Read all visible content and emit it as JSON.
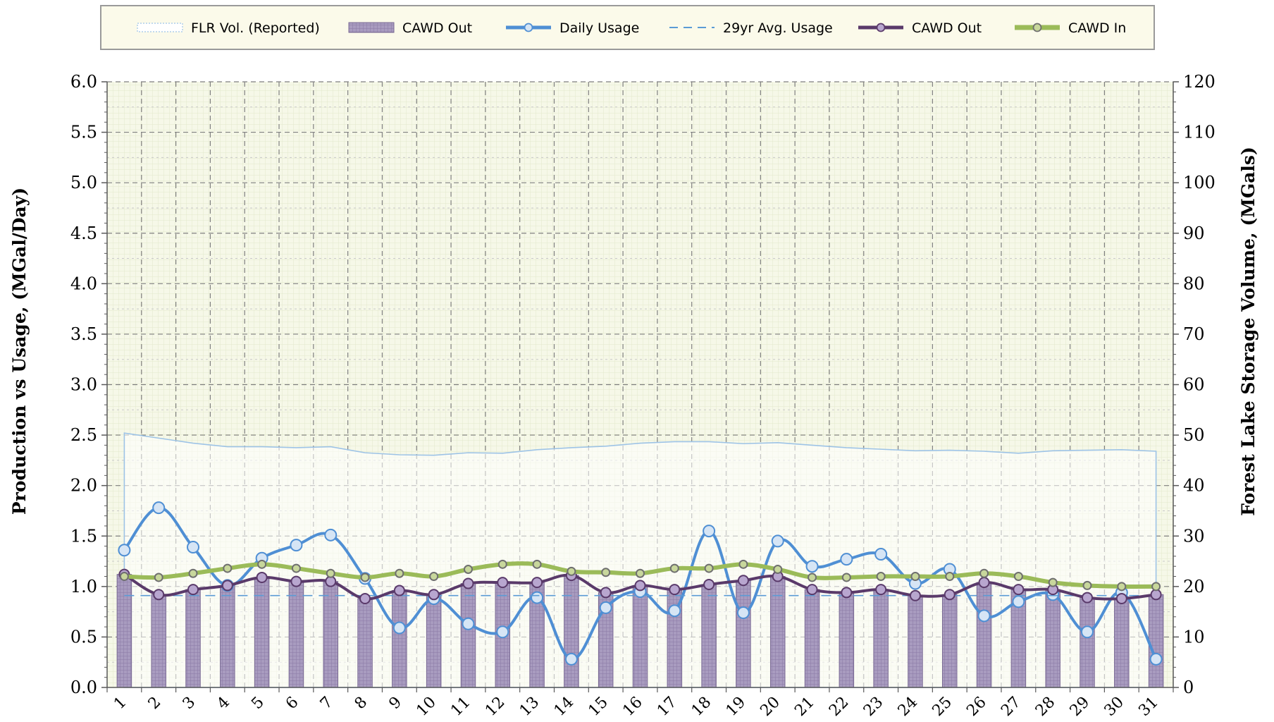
{
  "chart_data": {
    "type": "line",
    "title": "",
    "xlabel": "",
    "ylabel": "Production vs Usage, (MGal/Day)",
    "y2label": "Forest Lake Storage Volume, (MGals)",
    "categories": [
      "1",
      "2",
      "3",
      "4",
      "5",
      "6",
      "7",
      "8",
      "9",
      "10",
      "11",
      "12",
      "13",
      "14",
      "15",
      "16",
      "17",
      "18",
      "19",
      "20",
      "21",
      "22",
      "23",
      "24",
      "25",
      "26",
      "27",
      "28",
      "29",
      "30",
      "31"
    ],
    "ylim": [
      0,
      6
    ],
    "y2lim": [
      0,
      120
    ],
    "yticks": [
      "0.0",
      "0.5",
      "1.0",
      "1.5",
      "2.0",
      "2.5",
      "3.0",
      "3.5",
      "4.0",
      "4.5",
      "5.0",
      "5.5",
      "6.0"
    ],
    "y2ticks": [
      "0",
      "10",
      "20",
      "30",
      "40",
      "50",
      "60",
      "70",
      "80",
      "90",
      "100",
      "110",
      "120"
    ],
    "grid": true,
    "legend_position": "top",
    "series": [
      {
        "name": "FLR Vol. (Reported)",
        "kind": "area",
        "axis": "right",
        "color": "#9dc3e6",
        "values": [
          50.4,
          49.4,
          48.4,
          47.7,
          47.7,
          47.5,
          47.7,
          46.5,
          46.1,
          46.0,
          46.5,
          46.4,
          47.1,
          47.5,
          47.8,
          48.4,
          48.7,
          48.7,
          48.3,
          48.5,
          48.0,
          47.5,
          47.2,
          46.9,
          47.0,
          46.8,
          46.4,
          46.9,
          47.0,
          47.1,
          46.8
        ]
      },
      {
        "name": "CAWD Out",
        "kind": "bar",
        "axis": "left",
        "color": "#a89bbf",
        "values": [
          1.12,
          0.92,
          0.97,
          1.01,
          1.09,
          1.05,
          1.05,
          0.88,
          0.96,
          0.92,
          1.03,
          1.04,
          1.04,
          1.11,
          0.94,
          1.01,
          0.97,
          1.02,
          1.06,
          1.1,
          0.97,
          0.94,
          0.97,
          0.91,
          0.92,
          1.04,
          0.97,
          0.97,
          0.89,
          0.88,
          0.92
        ]
      },
      {
        "name": "Daily Usage",
        "kind": "line",
        "axis": "left",
        "color": "#4f8fd4",
        "values": [
          1.36,
          1.78,
          1.39,
          1.01,
          1.28,
          1.41,
          1.51,
          1.08,
          0.59,
          0.88,
          0.63,
          0.55,
          0.89,
          0.28,
          0.79,
          0.95,
          0.76,
          1.55,
          0.74,
          1.45,
          1.2,
          1.27,
          1.32,
          1.03,
          1.17,
          0.71,
          0.85,
          0.92,
          0.55,
          0.94,
          0.28
        ]
      },
      {
        "name": "29yr Avg. Usage",
        "kind": "dashed",
        "axis": "left",
        "color": "#5b9bd5",
        "values": [
          0.91,
          0.91,
          0.91,
          0.91,
          0.91,
          0.91,
          0.91,
          0.91,
          0.91,
          0.91,
          0.91,
          0.91,
          0.91,
          0.91,
          0.91,
          0.91,
          0.91,
          0.91,
          0.91,
          0.91,
          0.91,
          0.91,
          0.91,
          0.91,
          0.91,
          0.91,
          0.91,
          0.91,
          0.91,
          0.91,
          0.91
        ]
      },
      {
        "name": "CAWD Out",
        "kind": "line",
        "axis": "left",
        "color": "#5a3a6a",
        "values": [
          1.12,
          0.92,
          0.97,
          1.01,
          1.09,
          1.05,
          1.05,
          0.88,
          0.96,
          0.92,
          1.03,
          1.04,
          1.04,
          1.11,
          0.94,
          1.01,
          0.97,
          1.02,
          1.06,
          1.1,
          0.97,
          0.94,
          0.97,
          0.91,
          0.92,
          1.04,
          0.97,
          0.97,
          0.89,
          0.88,
          0.92
        ]
      },
      {
        "name": "CAWD In",
        "kind": "line",
        "axis": "left",
        "color": "#9bbb59",
        "values": [
          1.1,
          1.09,
          1.13,
          1.18,
          1.22,
          1.18,
          1.13,
          1.09,
          1.13,
          1.1,
          1.17,
          1.22,
          1.22,
          1.15,
          1.14,
          1.13,
          1.18,
          1.18,
          1.22,
          1.17,
          1.09,
          1.09,
          1.1,
          1.1,
          1.1,
          1.13,
          1.1,
          1.04,
          1.01,
          1.0,
          1.0
        ]
      }
    ]
  }
}
